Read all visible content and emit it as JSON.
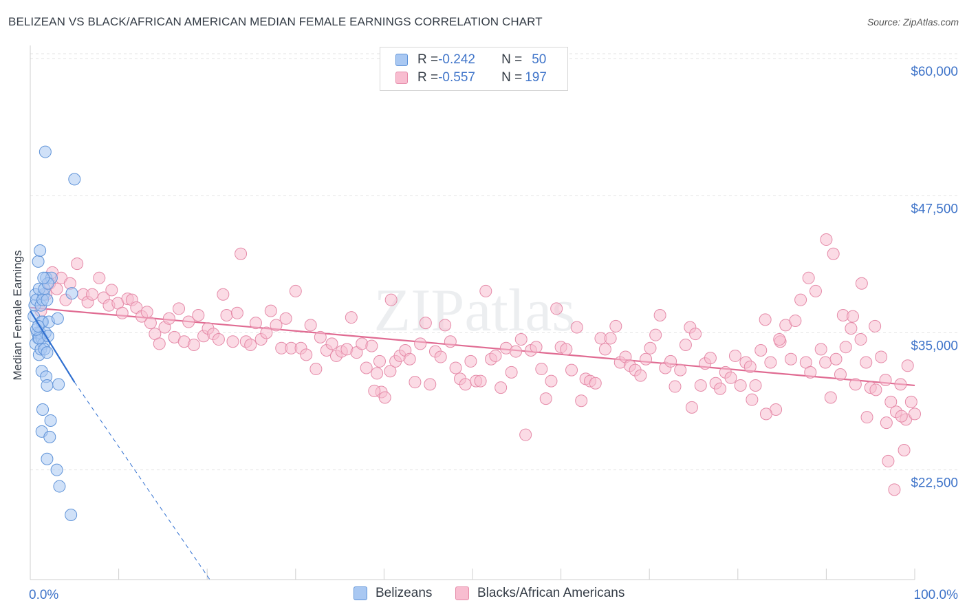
{
  "title": "BELIZEAN VS BLACK/AFRICAN AMERICAN MEDIAN FEMALE EARNINGS CORRELATION CHART",
  "source": "Source: ZipAtlas.com",
  "watermark": "ZIPatlas",
  "legend": {
    "rows": [
      {
        "r_label": "R = ",
        "r_value": "-0.242",
        "n_label": "N = ",
        "n_value": "50",
        "color": "#a9c8f2",
        "border": "#5f93d8"
      },
      {
        "r_label": "R = ",
        "r_value": "-0.557",
        "n_label": "N = ",
        "n_value": "197",
        "color": "#f8bdd0",
        "border": "#e58aa8"
      }
    ]
  },
  "bottom_legend": [
    {
      "label": "Belizeans",
      "color": "#a9c8f2",
      "border": "#5f93d8"
    },
    {
      "label": "Blacks/African Americans",
      "color": "#f8bdd0",
      "border": "#e58aa8"
    }
  ],
  "chart_data": {
    "type": "scatter",
    "title": "BELIZEAN VS BLACK/AFRICAN AMERICAN MEDIAN FEMALE EARNINGS CORRELATION CHART",
    "xlabel": "",
    "ylabel": "Median Female Earnings",
    "x_tick_labels": [
      "0.0%",
      "100.0%"
    ],
    "y_tick_labels": [
      "$60,000",
      "$47,500",
      "$35,000",
      "$22,500"
    ],
    "y_ticks": [
      60000,
      47500,
      35000,
      22500
    ],
    "xlim": [
      0,
      100
    ],
    "ylim": [
      12500,
      61200
    ],
    "grid": true,
    "legend_position": "top-center",
    "series": [
      {
        "name": "Belizeans",
        "color": "#a9c8f2",
        "stroke": "#5f93d8",
        "trend": {
          "x0": 0,
          "y0": 37000,
          "x1": 5,
          "y1": 30500,
          "dashed_to_x": 20.3,
          "dashed_to_y": 12500,
          "color": "#2f6fd0"
        },
        "points": [
          [
            0.5,
            37500
          ],
          [
            0.6,
            38500
          ],
          [
            0.7,
            38000
          ],
          [
            0.4,
            36500
          ],
          [
            0.8,
            35000
          ],
          [
            0.9,
            34500
          ],
          [
            0.6,
            34000
          ],
          [
            1.0,
            33000
          ],
          [
            1.1,
            35000
          ],
          [
            1.3,
            34500
          ],
          [
            1.4,
            36000
          ],
          [
            1.2,
            37500
          ],
          [
            1.5,
            38500
          ],
          [
            1.0,
            39000
          ],
          [
            0.9,
            41500
          ],
          [
            1.1,
            42500
          ],
          [
            1.6,
            39000
          ],
          [
            1.8,
            40000
          ],
          [
            2.4,
            40000
          ],
          [
            2.0,
            39500
          ],
          [
            1.4,
            38000
          ],
          [
            1.9,
            38000
          ],
          [
            1.3,
            36000
          ],
          [
            1.7,
            35000
          ],
          [
            2.1,
            36000
          ],
          [
            1.5,
            34000
          ],
          [
            1.0,
            34500
          ],
          [
            1.2,
            33500
          ],
          [
            1.6,
            33500
          ],
          [
            1.9,
            33200
          ],
          [
            1.3,
            31500
          ],
          [
            1.8,
            31000
          ],
          [
            1.9,
            30200
          ],
          [
            3.2,
            30300
          ],
          [
            1.4,
            28000
          ],
          [
            2.3,
            27000
          ],
          [
            1.3,
            26000
          ],
          [
            2.2,
            25500
          ],
          [
            1.9,
            23500
          ],
          [
            3.0,
            22500
          ],
          [
            3.3,
            21000
          ],
          [
            4.6,
            18400
          ],
          [
            1.7,
            51500
          ],
          [
            5.0,
            49000
          ],
          [
            4.7,
            38600
          ],
          [
            3.1,
            36300
          ],
          [
            0.7,
            35300
          ],
          [
            1.5,
            40000
          ],
          [
            2.0,
            34700
          ],
          [
            0.9,
            35600
          ]
        ]
      },
      {
        "name": "Blacks/African Americans",
        "color": "#f8bdd0",
        "stroke": "#e58aa8",
        "trend": {
          "x0": 0,
          "y0": 37300,
          "x1": 100,
          "y1": 30200,
          "color": "#e06b92"
        },
        "points": [
          [
            1.2,
            37000
          ],
          [
            1.8,
            38500
          ],
          [
            2.2,
            39500
          ],
          [
            2.5,
            40500
          ],
          [
            3.0,
            39000
          ],
          [
            3.5,
            40000
          ],
          [
            4.0,
            38000
          ],
          [
            4.5,
            39500
          ],
          [
            5.3,
            41300
          ],
          [
            6.0,
            38500
          ],
          [
            6.5,
            37800
          ],
          [
            7.0,
            38500
          ],
          [
            7.8,
            40000
          ],
          [
            8.3,
            38200
          ],
          [
            8.9,
            37500
          ],
          [
            9.2,
            38900
          ],
          [
            9.9,
            37700
          ],
          [
            10.4,
            36800
          ],
          [
            11.0,
            38100
          ],
          [
            11.5,
            38000
          ],
          [
            12.0,
            37300
          ],
          [
            12.6,
            36500
          ],
          [
            13.2,
            36900
          ],
          [
            13.6,
            35900
          ],
          [
            14.1,
            34900
          ],
          [
            14.6,
            34000
          ],
          [
            15.2,
            35500
          ],
          [
            15.7,
            36300
          ],
          [
            16.3,
            34600
          ],
          [
            16.8,
            37200
          ],
          [
            17.4,
            34200
          ],
          [
            17.9,
            36000
          ],
          [
            18.5,
            33900
          ],
          [
            19.0,
            36600
          ],
          [
            19.6,
            34700
          ],
          [
            20.1,
            35400
          ],
          [
            20.7,
            34900
          ],
          [
            21.3,
            34400
          ],
          [
            21.8,
            38500
          ],
          [
            22.2,
            36600
          ],
          [
            22.9,
            34200
          ],
          [
            23.4,
            36800
          ],
          [
            23.8,
            42200
          ],
          [
            24.4,
            34200
          ],
          [
            24.9,
            33900
          ],
          [
            25.5,
            35900
          ],
          [
            26.1,
            34400
          ],
          [
            26.7,
            35000
          ],
          [
            27.2,
            37000
          ],
          [
            27.8,
            35700
          ],
          [
            28.4,
            33600
          ],
          [
            28.9,
            36300
          ],
          [
            29.5,
            33600
          ],
          [
            30.0,
            38800
          ],
          [
            30.6,
            33600
          ],
          [
            31.2,
            33000
          ],
          [
            31.7,
            35700
          ],
          [
            32.3,
            31700
          ],
          [
            32.8,
            34600
          ],
          [
            33.5,
            33400
          ],
          [
            34.1,
            34000
          ],
          [
            34.6,
            32900
          ],
          [
            35.2,
            33300
          ],
          [
            35.8,
            33500
          ],
          [
            36.3,
            36400
          ],
          [
            36.9,
            33200
          ],
          [
            37.5,
            34000
          ],
          [
            38.0,
            31800
          ],
          [
            38.6,
            33800
          ],
          [
            39.2,
            31300
          ],
          [
            39.7,
            29600
          ],
          [
            40.1,
            29100
          ],
          [
            40.7,
            31500
          ],
          [
            41.3,
            32400
          ],
          [
            41.8,
            32900
          ],
          [
            42.4,
            33400
          ],
          [
            42.9,
            32600
          ],
          [
            43.5,
            30500
          ],
          [
            44.1,
            34000
          ],
          [
            44.7,
            35900
          ],
          [
            45.2,
            30300
          ],
          [
            45.8,
            33300
          ],
          [
            46.4,
            32800
          ],
          [
            46.9,
            35700
          ],
          [
            47.5,
            34200
          ],
          [
            48.1,
            31800
          ],
          [
            48.6,
            30800
          ],
          [
            49.2,
            30300
          ],
          [
            49.8,
            32400
          ],
          [
            50.4,
            30600
          ],
          [
            50.9,
            30600
          ],
          [
            51.5,
            38800
          ],
          [
            52.1,
            32600
          ],
          [
            52.6,
            32900
          ],
          [
            53.2,
            30000
          ],
          [
            53.8,
            33600
          ],
          [
            54.4,
            31400
          ],
          [
            54.9,
            33300
          ],
          [
            55.5,
            34400
          ],
          [
            56.0,
            25700
          ],
          [
            56.6,
            33400
          ],
          [
            57.2,
            33700
          ],
          [
            57.8,
            31700
          ],
          [
            58.3,
            29000
          ],
          [
            58.9,
            30600
          ],
          [
            59.5,
            37200
          ],
          [
            60.0,
            33700
          ],
          [
            60.6,
            33500
          ],
          [
            61.2,
            31600
          ],
          [
            61.8,
            35500
          ],
          [
            62.3,
            28800
          ],
          [
            62.8,
            30800
          ],
          [
            63.3,
            30600
          ],
          [
            63.9,
            30400
          ],
          [
            64.5,
            34500
          ],
          [
            65.0,
            33500
          ],
          [
            65.6,
            34500
          ],
          [
            66.2,
            35600
          ],
          [
            66.7,
            32300
          ],
          [
            67.3,
            32800
          ],
          [
            67.8,
            32000
          ],
          [
            68.4,
            31600
          ],
          [
            69.0,
            31100
          ],
          [
            69.6,
            32600
          ],
          [
            70.1,
            33600
          ],
          [
            70.7,
            34800
          ],
          [
            71.2,
            36600
          ],
          [
            71.8,
            31800
          ],
          [
            72.4,
            32400
          ],
          [
            72.9,
            30100
          ],
          [
            73.5,
            31600
          ],
          [
            74.1,
            33900
          ],
          [
            74.6,
            35500
          ],
          [
            75.2,
            34900
          ],
          [
            75.8,
            30200
          ],
          [
            76.3,
            32200
          ],
          [
            76.9,
            32700
          ],
          [
            77.5,
            30400
          ],
          [
            78.0,
            29900
          ],
          [
            78.6,
            31400
          ],
          [
            79.2,
            30900
          ],
          [
            79.7,
            32900
          ],
          [
            80.3,
            30200
          ],
          [
            80.9,
            32300
          ],
          [
            81.4,
            31900
          ],
          [
            82.0,
            30200
          ],
          [
            82.6,
            33400
          ],
          [
            83.1,
            36200
          ],
          [
            83.7,
            32300
          ],
          [
            84.3,
            28000
          ],
          [
            84.8,
            34200
          ],
          [
            85.4,
            35700
          ],
          [
            86.0,
            32600
          ],
          [
            86.5,
            36100
          ],
          [
            87.1,
            38000
          ],
          [
            87.7,
            32300
          ],
          [
            88.2,
            31400
          ],
          [
            88.8,
            38800
          ],
          [
            89.4,
            33500
          ],
          [
            89.9,
            32300
          ],
          [
            90.5,
            29100
          ],
          [
            91.1,
            32600
          ],
          [
            91.6,
            31200
          ],
          [
            92.2,
            33700
          ],
          [
            92.8,
            35400
          ],
          [
            93.3,
            30300
          ],
          [
            93.9,
            34400
          ],
          [
            94.5,
            32300
          ],
          [
            95.0,
            30000
          ],
          [
            95.6,
            29800
          ],
          [
            96.2,
            32800
          ],
          [
            96.7,
            30700
          ],
          [
            97.3,
            28700
          ],
          [
            97.9,
            27800
          ],
          [
            98.4,
            30300
          ],
          [
            99.0,
            27100
          ],
          [
            99.6,
            28700
          ],
          [
            100.0,
            27600
          ],
          [
            90.0,
            43500
          ],
          [
            90.8,
            42200
          ],
          [
            91.9,
            36600
          ],
          [
            93.0,
            36500
          ],
          [
            94.0,
            39500
          ],
          [
            95.5,
            35600
          ],
          [
            96.8,
            26800
          ],
          [
            97.0,
            23300
          ],
          [
            97.7,
            20700
          ],
          [
            98.8,
            24300
          ],
          [
            98.5,
            27400
          ],
          [
            99.2,
            32000
          ],
          [
            94.6,
            27300
          ],
          [
            88.0,
            40000
          ],
          [
            38.9,
            29700
          ],
          [
            40.8,
            38000
          ],
          [
            39.5,
            32400
          ],
          [
            83.2,
            27600
          ],
          [
            84.7,
            34400
          ],
          [
            81.6,
            28900
          ],
          [
            74.8,
            28200
          ]
        ]
      }
    ]
  }
}
